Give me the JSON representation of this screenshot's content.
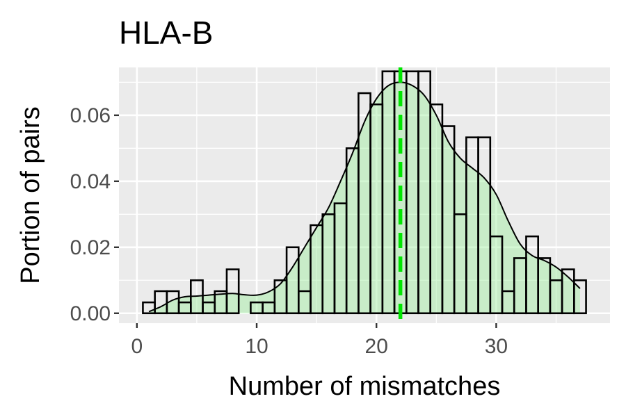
{
  "chart_data": {
    "type": "bar",
    "title": "HLA-B",
    "xlabel": "Number of mismatches",
    "ylabel": "Portion of pairs",
    "xlim": [
      -1.5,
      39.5
    ],
    "ylim": [
      -0.003,
      0.0745
    ],
    "x_ticks": [
      "0",
      "10",
      "20",
      "30"
    ],
    "x_tick_values": [
      0,
      10,
      20,
      30
    ],
    "y_ticks": [
      "0.00",
      "0.02",
      "0.04",
      "0.06"
    ],
    "y_tick_values": [
      0,
      0.02,
      0.04,
      0.06
    ],
    "grid": true,
    "panel_color": "#ebebeb",
    "histogram": {
      "bin_width": 1,
      "x": [
        1,
        2,
        3,
        4,
        5,
        6,
        7,
        8,
        9,
        10,
        11,
        12,
        13,
        14,
        15,
        16,
        17,
        18,
        19,
        20,
        21,
        22,
        23,
        24,
        25,
        26,
        27,
        28,
        29,
        30,
        31,
        32,
        33,
        34,
        35,
        36,
        37
      ],
      "values": [
        0.0033,
        0.0067,
        0.0067,
        0.0033,
        0.01,
        0.0033,
        0.0067,
        0.0133,
        0.0,
        0.0033,
        0.0033,
        0.01,
        0.02,
        0.0067,
        0.0267,
        0.03,
        0.0333,
        0.05,
        0.0667,
        0.0633,
        0.0733,
        0.0733,
        0.0733,
        0.0733,
        0.0633,
        0.0567,
        0.03,
        0.0533,
        0.0533,
        0.0233,
        0.0067,
        0.0167,
        0.0233,
        0.0167,
        0.01,
        0.0133,
        0.01
      ],
      "fill": "#ffffff",
      "stroke": "#000000"
    },
    "density": {
      "x": [
        1,
        2,
        3,
        4,
        5,
        6,
        7,
        8,
        9,
        10,
        11,
        12,
        13,
        14,
        15,
        16,
        17,
        18,
        19,
        20,
        21,
        22,
        23,
        24,
        25,
        26,
        27,
        28,
        29,
        30,
        31,
        32,
        33,
        34,
        35,
        36,
        37
      ],
      "y": [
        0.0005,
        0.002,
        0.004,
        0.005,
        0.0052,
        0.0055,
        0.0058,
        0.006,
        0.0056,
        0.0055,
        0.0065,
        0.009,
        0.014,
        0.02,
        0.026,
        0.032,
        0.04,
        0.0485,
        0.058,
        0.065,
        0.069,
        0.07,
        0.069,
        0.066,
        0.06,
        0.052,
        0.047,
        0.044,
        0.041,
        0.036,
        0.028,
        0.021,
        0.0175,
        0.016,
        0.014,
        0.011,
        0.0075
      ],
      "fill": "#9dee9d",
      "fill_opacity": 0.45,
      "stroke": "#000000"
    },
    "vline": {
      "x": 22,
      "color": "#00e600",
      "linetype": "dashed"
    }
  }
}
